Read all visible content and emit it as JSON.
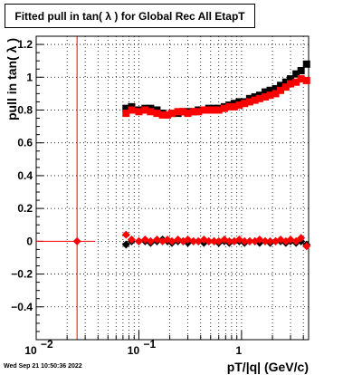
{
  "chart_data": {
    "type": "scatter",
    "title": "Fitted pull in tan( λ ) for Global Rec All EtapT",
    "xlabel": "pT/|q| (GeV/c)",
    "ylabel": "pull in tan( λ )",
    "x_scale": "log",
    "xlim": [
      0.01,
      4.5
    ],
    "ylim": [
      -0.6,
      1.25
    ],
    "grid": true,
    "x_tick_labels": [
      "10",
      "10",
      "1"
    ],
    "x_tick_exponents": [
      "−2",
      "−1",
      ""
    ],
    "y_tick_labels": [
      "1.2",
      "1",
      "0.8",
      "0.6",
      "0.4",
      "0.2",
      "0",
      "−0.2",
      "−0.4"
    ],
    "y_ticks": [
      1.2,
      1.0,
      0.8,
      0.6,
      0.4,
      0.2,
      0.0,
      -0.2,
      -0.4
    ],
    "vertical_line_x": 0.025,
    "vertical_line_color": "#ff0000",
    "series": [
      {
        "color": "#000000",
        "marker": "square",
        "x": [
          0.075,
          0.085,
          0.1,
          0.115,
          0.13,
          0.15,
          0.17,
          0.19,
          0.21,
          0.24,
          0.27,
          0.3,
          0.34,
          0.38,
          0.43,
          0.48,
          0.54,
          0.6,
          0.68,
          0.76,
          0.85,
          0.95,
          1.07,
          1.2,
          1.35,
          1.5,
          1.7,
          1.9,
          2.15,
          2.4,
          2.7,
          3.0,
          3.4,
          3.8,
          4.3
        ],
        "y": [
          0.81,
          0.82,
          0.8,
          0.81,
          0.81,
          0.8,
          0.78,
          0.77,
          0.78,
          0.78,
          0.79,
          0.79,
          0.79,
          0.8,
          0.8,
          0.81,
          0.81,
          0.81,
          0.82,
          0.83,
          0.84,
          0.85,
          0.85,
          0.87,
          0.88,
          0.89,
          0.91,
          0.92,
          0.93,
          0.95,
          0.97,
          0.99,
          1.02,
          1.04,
          1.08
        ]
      },
      {
        "color": "#ff0000",
        "marker": "square",
        "x": [
          0.075,
          0.085,
          0.1,
          0.115,
          0.13,
          0.15,
          0.17,
          0.19,
          0.21,
          0.24,
          0.27,
          0.3,
          0.34,
          0.38,
          0.43,
          0.48,
          0.54,
          0.6,
          0.68,
          0.76,
          0.85,
          0.95,
          1.07,
          1.2,
          1.35,
          1.5,
          1.7,
          1.9,
          2.15,
          2.4,
          2.7,
          3.0,
          3.4,
          3.8,
          4.3
        ],
        "y": [
          0.78,
          0.8,
          0.79,
          0.8,
          0.79,
          0.78,
          0.77,
          0.77,
          0.78,
          0.79,
          0.79,
          0.78,
          0.79,
          0.79,
          0.8,
          0.8,
          0.8,
          0.8,
          0.81,
          0.82,
          0.82,
          0.83,
          0.84,
          0.85,
          0.86,
          0.87,
          0.88,
          0.89,
          0.9,
          0.92,
          0.94,
          0.96,
          0.97,
          0.99,
          0.98
        ]
      },
      {
        "color": "#000000",
        "marker": "diamond",
        "x": [
          0.075,
          0.085,
          0.1,
          0.115,
          0.13,
          0.15,
          0.17,
          0.19,
          0.21,
          0.24,
          0.27,
          0.3,
          0.34,
          0.38,
          0.43,
          0.48,
          0.54,
          0.6,
          0.68,
          0.76,
          0.85,
          0.95,
          1.07,
          1.2,
          1.35,
          1.5,
          1.7,
          1.9,
          2.15,
          2.4,
          2.7,
          3.0,
          3.4,
          3.8,
          4.3
        ],
        "y": [
          -0.02,
          0.0,
          0.0,
          0.0,
          -0.01,
          0.0,
          0.01,
          0.0,
          -0.01,
          0.0,
          0.0,
          -0.01,
          0.0,
          0.0,
          -0.01,
          0.0,
          0.0,
          -0.01,
          0.0,
          -0.01,
          0.0,
          0.0,
          -0.01,
          0.0,
          0.0,
          -0.01,
          0.0,
          -0.01,
          0.0,
          0.0,
          -0.01,
          0.0,
          -0.01,
          0.0,
          -0.02
        ]
      },
      {
        "color": "#ff0000",
        "marker": "diamond",
        "x": [
          0.025,
          0.075,
          0.085,
          0.1,
          0.115,
          0.13,
          0.15,
          0.17,
          0.19,
          0.21,
          0.24,
          0.27,
          0.3,
          0.34,
          0.38,
          0.43,
          0.48,
          0.54,
          0.6,
          0.68,
          0.76,
          0.85,
          0.95,
          1.07,
          1.2,
          1.35,
          1.5,
          1.7,
          1.9,
          2.15,
          2.4,
          2.7,
          3.0,
          3.4,
          3.8,
          4.3
        ],
        "y": [
          0.0,
          0.04,
          0.01,
          0.0,
          0.01,
          0.0,
          0.01,
          0.0,
          0.01,
          0.0,
          0.01,
          0.0,
          0.01,
          0.0,
          0.0,
          0.01,
          0.0,
          0.0,
          0.0,
          0.01,
          0.0,
          0.0,
          0.01,
          0.0,
          0.0,
          0.0,
          0.01,
          0.0,
          0.0,
          0.0,
          0.01,
          0.0,
          0.01,
          0.0,
          0.02,
          -0.03
        ]
      }
    ]
  },
  "footer": {
    "timestamp": "Wed Sep 21 10:50:36 2022"
  }
}
